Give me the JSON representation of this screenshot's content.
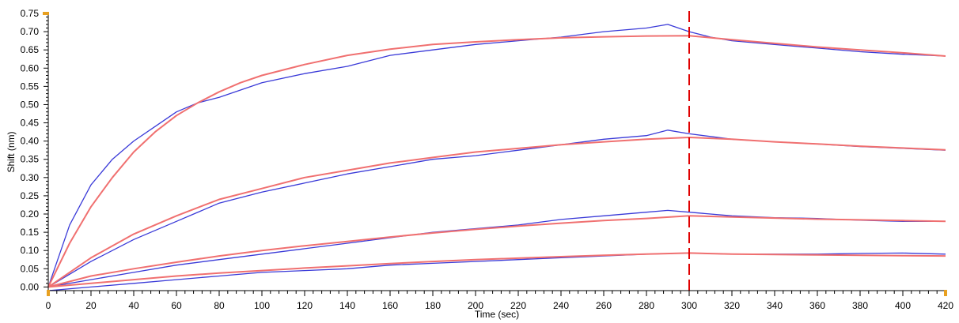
{
  "chart_data": {
    "type": "line",
    "title": "",
    "xlabel": "Time (sec)",
    "ylabel": "Shift (nm)",
    "xlim": [
      0,
      420
    ],
    "ylim": [
      -0.01,
      0.75
    ],
    "xticks": [
      0,
      20,
      40,
      60,
      80,
      100,
      120,
      140,
      160,
      180,
      200,
      220,
      240,
      260,
      280,
      300,
      320,
      340,
      360,
      380,
      400,
      420
    ],
    "yticks": [
      0.0,
      0.05,
      0.1,
      0.15,
      0.2,
      0.25,
      0.3,
      0.35,
      0.4,
      0.45,
      0.5,
      0.55,
      0.6,
      0.65,
      0.7,
      0.75
    ],
    "grid": false,
    "vline": {
      "x": 300,
      "color": "#e00000",
      "style": "dashed"
    },
    "colors": {
      "measured": "#3a3ad8",
      "fit": "#f07070",
      "axis": "#000000",
      "tick_marker": "#e8a020"
    },
    "series": [
      {
        "kind": "measured",
        "x": [
          0,
          10,
          20,
          30,
          40,
          50,
          60,
          70,
          80,
          90,
          100,
          120,
          140,
          160,
          180,
          200,
          220,
          240,
          260,
          280,
          290,
          300,
          310,
          320,
          340,
          360,
          380,
          400,
          420
        ],
        "y": [
          0,
          0.17,
          0.28,
          0.35,
          0.4,
          0.44,
          0.48,
          0.505,
          0.52,
          0.54,
          0.56,
          0.585,
          0.605,
          0.635,
          0.65,
          0.665,
          0.675,
          0.685,
          0.7,
          0.71,
          0.72,
          0.7,
          0.685,
          0.675,
          0.665,
          0.655,
          0.645,
          0.638,
          0.633
        ]
      },
      {
        "kind": "fit",
        "x": [
          0,
          10,
          20,
          30,
          40,
          50,
          60,
          70,
          80,
          90,
          100,
          120,
          140,
          160,
          180,
          200,
          220,
          240,
          260,
          280,
          300,
          320,
          340,
          360,
          380,
          400,
          420
        ],
        "y": [
          0,
          0.12,
          0.22,
          0.3,
          0.37,
          0.425,
          0.47,
          0.505,
          0.535,
          0.56,
          0.58,
          0.61,
          0.635,
          0.652,
          0.665,
          0.672,
          0.678,
          0.683,
          0.686,
          0.688,
          0.689,
          0.678,
          0.668,
          0.658,
          0.65,
          0.642,
          0.633
        ]
      },
      {
        "kind": "measured",
        "x": [
          0,
          20,
          40,
          60,
          80,
          100,
          120,
          140,
          160,
          180,
          200,
          220,
          240,
          260,
          280,
          290,
          300,
          320,
          340,
          360,
          380,
          400,
          420
        ],
        "y": [
          0,
          0.07,
          0.13,
          0.18,
          0.23,
          0.26,
          0.285,
          0.31,
          0.33,
          0.35,
          0.36,
          0.375,
          0.39,
          0.405,
          0.415,
          0.43,
          0.42,
          0.405,
          0.398,
          0.392,
          0.385,
          0.38,
          0.375
        ]
      },
      {
        "kind": "fit",
        "x": [
          0,
          20,
          40,
          60,
          80,
          100,
          120,
          140,
          160,
          180,
          200,
          220,
          240,
          260,
          280,
          300,
          320,
          340,
          360,
          380,
          400,
          420
        ],
        "y": [
          0,
          0.08,
          0.145,
          0.195,
          0.24,
          0.27,
          0.3,
          0.32,
          0.34,
          0.355,
          0.37,
          0.38,
          0.39,
          0.398,
          0.405,
          0.41,
          0.405,
          0.398,
          0.392,
          0.386,
          0.381,
          0.376
        ]
      },
      {
        "kind": "measured",
        "x": [
          0,
          20,
          40,
          60,
          80,
          100,
          120,
          140,
          160,
          180,
          200,
          220,
          240,
          260,
          280,
          290,
          300,
          320,
          340,
          360,
          380,
          400,
          420
        ],
        "y": [
          0,
          0.02,
          0.04,
          0.06,
          0.075,
          0.09,
          0.105,
          0.12,
          0.135,
          0.15,
          0.16,
          0.17,
          0.185,
          0.195,
          0.205,
          0.21,
          0.205,
          0.195,
          0.19,
          0.188,
          0.183,
          0.18,
          0.18
        ]
      },
      {
        "kind": "fit",
        "x": [
          0,
          20,
          40,
          60,
          80,
          100,
          120,
          140,
          160,
          180,
          200,
          220,
          240,
          260,
          280,
          300,
          320,
          340,
          360,
          380,
          400,
          420
        ],
        "y": [
          0,
          0.03,
          0.05,
          0.068,
          0.085,
          0.1,
          0.113,
          0.125,
          0.137,
          0.148,
          0.158,
          0.167,
          0.175,
          0.182,
          0.188,
          0.195,
          0.192,
          0.189,
          0.186,
          0.184,
          0.182,
          0.18
        ]
      },
      {
        "kind": "measured",
        "x": [
          0,
          20,
          40,
          60,
          80,
          100,
          120,
          140,
          160,
          180,
          200,
          220,
          240,
          260,
          280,
          300,
          320,
          340,
          360,
          380,
          400,
          420
        ],
        "y": [
          -0.01,
          0.0,
          0.01,
          0.02,
          0.03,
          0.04,
          0.045,
          0.05,
          0.06,
          0.065,
          0.07,
          0.075,
          0.08,
          0.085,
          0.09,
          0.093,
          0.09,
          0.09,
          0.09,
          0.092,
          0.093,
          0.09
        ]
      },
      {
        "kind": "fit",
        "x": [
          0,
          20,
          40,
          60,
          80,
          100,
          120,
          140,
          160,
          180,
          200,
          220,
          240,
          260,
          280,
          300,
          320,
          340,
          360,
          380,
          400,
          420
        ],
        "y": [
          0,
          0.01,
          0.02,
          0.03,
          0.038,
          0.045,
          0.052,
          0.058,
          0.064,
          0.07,
          0.075,
          0.079,
          0.083,
          0.087,
          0.09,
          0.093,
          0.09,
          0.089,
          0.088,
          0.087,
          0.086,
          0.085
        ]
      }
    ]
  }
}
